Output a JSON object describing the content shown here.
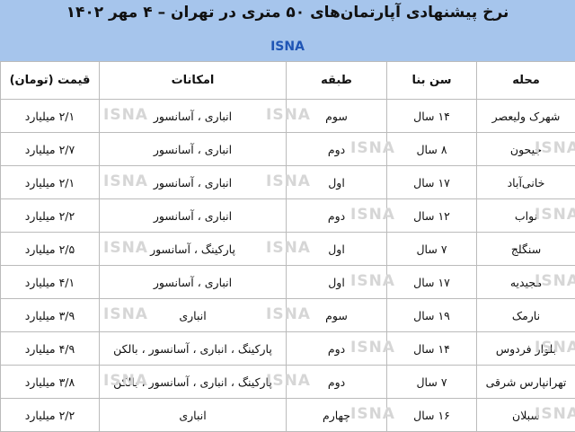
{
  "header": {
    "title": "نرخ پیشنهادی آپارتمان‌های ۵۰ متری در تهران – ۴ مهر ۱۴۰۲",
    "source": "ISNA"
  },
  "watermark": "ISNA",
  "table": {
    "columns": [
      "محله",
      "سن بنا",
      "طبقه",
      "امکانات",
      "قیمت (تومان)"
    ],
    "rows": [
      [
        "شهرک ولیعصر",
        "۱۴ سال",
        "سوم",
        "انباری ، آسانسور",
        "۲/۱ میلیارد"
      ],
      [
        "جیحون",
        "۸ سال",
        "دوم",
        "انباری ، آسانسور",
        "۲/۷ میلیارد"
      ],
      [
        "خانی‌آباد",
        "۱۷ سال",
        "اول",
        "انباری ، آسانسور",
        "۲/۱ میلیارد"
      ],
      [
        "نواب",
        "۱۲ سال",
        "دوم",
        "انباری ، آسانسور",
        "۲/۲ میلیارد"
      ],
      [
        "سنگلج",
        "۷ سال",
        "اول",
        "پارکینگ ، آسانسور",
        "۲/۵ میلیارد"
      ],
      [
        "مجیدیه",
        "۱۷ سال",
        "اول",
        "انباری ، آسانسور",
        "۴/۱ میلیارد"
      ],
      [
        "نارمک",
        "۱۹ سال",
        "سوم",
        "انباری",
        "۳/۹ میلیارد"
      ],
      [
        "بلوار فردوس",
        "۱۴ سال",
        "دوم",
        "پارکینگ ، انباری ، آسانسور ، بالکن",
        "۴/۹ میلیارد"
      ],
      [
        "تهرانپارس شرقی",
        "۷ سال",
        "دوم",
        "پارکینگ ، انباری ، آسانسور ، بالکن",
        "۳/۸ میلیارد"
      ],
      [
        "سبلان",
        "۱۶ سال",
        "چهارم",
        "انباری",
        "۲/۲ میلیارد"
      ]
    ]
  }
}
